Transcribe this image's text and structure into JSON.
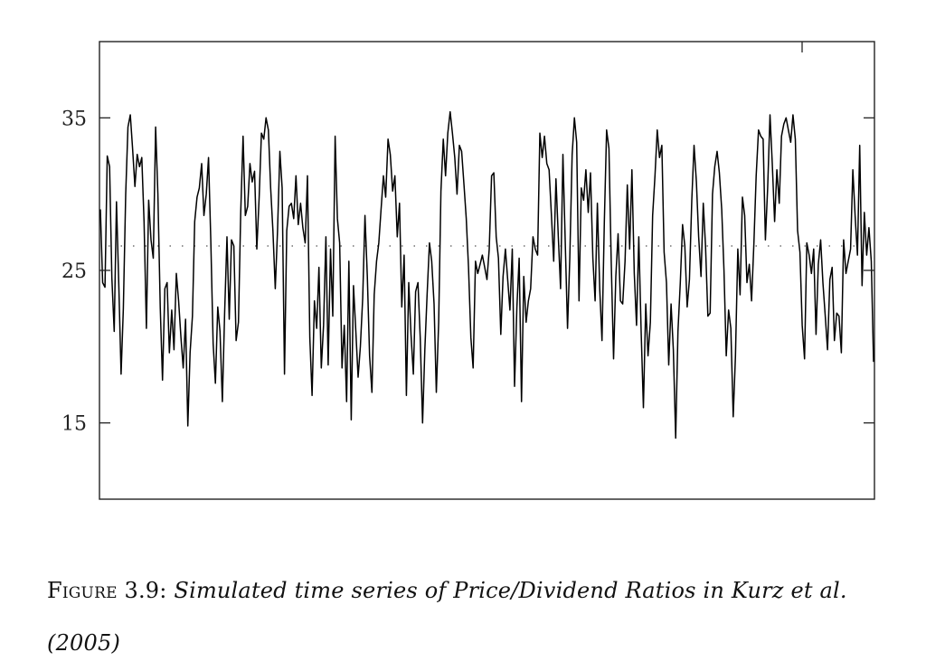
{
  "figure": {
    "label": "Figure 3.9:",
    "caption_line1": "Simulated time series of Price/Dividend Ratios in Kurz et al.",
    "caption_line2": "(2005)"
  },
  "chart_data": {
    "type": "line",
    "title": "",
    "xlabel": "",
    "ylabel": "",
    "ylim": [
      10,
      40
    ],
    "yticks": [
      15,
      25,
      35
    ],
    "ytick_labels": [
      "15",
      "25",
      "35"
    ],
    "xticks": [],
    "grid": false,
    "legend": null,
    "reference_line": {
      "y": 26.6,
      "style": "dotted",
      "description": "mean price/dividend ratio"
    },
    "series": [
      {
        "name": "Price/Dividend Ratio",
        "color": "#000000",
        "values": [
          29,
          24.2,
          23.9,
          32.5,
          31.8,
          24.5,
          21,
          29.5,
          24,
          18.2,
          22.5,
          30,
          34.4,
          35.2,
          33,
          30.5,
          32.6,
          31.8,
          32.4,
          28.2,
          21.2,
          29.6,
          27,
          25.8,
          34.4,
          30,
          22.6,
          17.8,
          23.8,
          24.2,
          19.6,
          22.4,
          19.8,
          24.8,
          23,
          20.6,
          18.6,
          21.8,
          14.8,
          19.6,
          22,
          28.2,
          29.8,
          30.4,
          32,
          28.6,
          30,
          32.4,
          27,
          20.2,
          17.6,
          22.6,
          21,
          16.4,
          22.2,
          27.2,
          21.8,
          27,
          26.6,
          20.4,
          21.6,
          28.8,
          33.8,
          28.6,
          29.2,
          32,
          30.8,
          31.5,
          26.4,
          29.8,
          34,
          33.6,
          35,
          34.2,
          30.4,
          27.6,
          23.8,
          27.6,
          32.8,
          30.4,
          18.2,
          27.6,
          29.2,
          29.4,
          28.4,
          31.2,
          28,
          29.4,
          27.8,
          26.8,
          31.2,
          20.6,
          16.8,
          23,
          21.2,
          25.2,
          18.6,
          21.4,
          27.2,
          18.8,
          26.4,
          22,
          33.8,
          28.4,
          26.8,
          18.6,
          21.4,
          16.4,
          25.6,
          15.2,
          24,
          21,
          18,
          20,
          23.2,
          28.6,
          24.6,
          19.4,
          17,
          23.4,
          25.6,
          26.8,
          29,
          31.2,
          29.8,
          33.6,
          32.6,
          30.2,
          31.2,
          27.2,
          29.4,
          22.6,
          26,
          16.8,
          24.2,
          20.8,
          18.2,
          23.6,
          24.2,
          20.6,
          15,
          19.8,
          23.4,
          26.8,
          25.6,
          22.8,
          17,
          21.6,
          30.2,
          33.6,
          31.2,
          34,
          35.4,
          34,
          32.4,
          30,
          33.2,
          32.8,
          30.6,
          28.4,
          25.2,
          20.6,
          18.6,
          25.6,
          24.8,
          25.4,
          26,
          25.2,
          24.4,
          26.4,
          31.2,
          31.4,
          27.2,
          25.8,
          20.8,
          24.6,
          26.4,
          24.4,
          22.4,
          26.4,
          17.4,
          22.6,
          25.8,
          16.4,
          24.6,
          21.6,
          23,
          23.8,
          27.2,
          26.4,
          26,
          34,
          32.4,
          33.8,
          32,
          31.6,
          28.6,
          25.6,
          31,
          27.2,
          23.8,
          32.6,
          27,
          21.2,
          25.8,
          32.6,
          35,
          33.4,
          23,
          30.4,
          29.6,
          31.6,
          28.8,
          31.4,
          25.8,
          23,
          29.4,
          23.8,
          20.4,
          28.2,
          34.2,
          33,
          25.6,
          19.2,
          24.6,
          27.4,
          23,
          22.8,
          25.6,
          30.6,
          26.4,
          31.6,
          24.8,
          21.4,
          27.2,
          21,
          16,
          22.8,
          19.4,
          21.6,
          28.6,
          31.2,
          34.2,
          32.4,
          33.2,
          26.2,
          24.2,
          18.8,
          22.8,
          19.8,
          14,
          21,
          24.2,
          28,
          26.6,
          22.6,
          24.4,
          29.6,
          33.2,
          30.8,
          27.2,
          24.6,
          29.4,
          26.6,
          22,
          22.2,
          30,
          31.8,
          32.8,
          31.4,
          29,
          25,
          19.4,
          22.4,
          21.2,
          15.4,
          19.4,
          26.4,
          23.4,
          29.8,
          28.6,
          24.2,
          25.4,
          23,
          26.8,
          31.2,
          34.2,
          33.8,
          33.6,
          27,
          30.4,
          35.2,
          32,
          28.2,
          31.6,
          29.4,
          33.8,
          34.6,
          35,
          34.2,
          33.4,
          35.2,
          33.6,
          27.6,
          26.2,
          21.4,
          19.2,
          26.8,
          26,
          24.8,
          26.4,
          20.8,
          25.4,
          27,
          24.2,
          22,
          19.8,
          24.4,
          25.2,
          20.4,
          22.2,
          22,
          19.6,
          27,
          24.8,
          25.6,
          26.4,
          31.6,
          28.6,
          26,
          33.2,
          24,
          28.8,
          26,
          27.8,
          25.6,
          19
        ]
      }
    ]
  }
}
